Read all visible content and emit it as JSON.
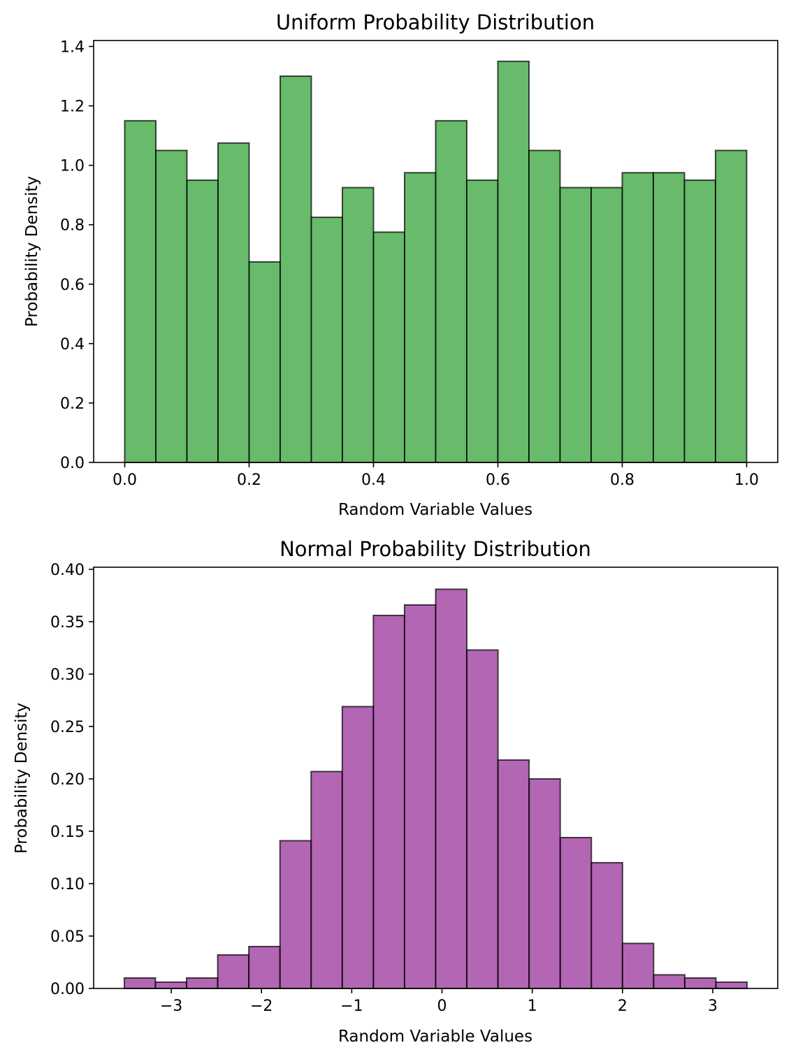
{
  "chart_data": [
    {
      "type": "bar",
      "subtype": "histogram",
      "title": "Uniform Probability Distribution",
      "xlabel": "Random Variable Values",
      "ylabel": "Probability Density",
      "bar_color": "#4caf50",
      "bar_alpha": 0.85,
      "edge_color": "#000000",
      "grid": false,
      "xlim": [
        -0.05,
        1.05
      ],
      "ylim": [
        0,
        1.42
      ],
      "xticks": [
        0.0,
        0.2,
        0.4,
        0.6,
        0.8,
        1.0
      ],
      "xtick_labels": [
        "0.0",
        "0.2",
        "0.4",
        "0.6",
        "0.8",
        "1.0"
      ],
      "yticks": [
        0.0,
        0.2,
        0.4,
        0.6,
        0.8,
        1.0,
        1.2,
        1.4
      ],
      "ytick_labels": [
        "0.0",
        "0.2",
        "0.4",
        "0.6",
        "0.8",
        "1.0",
        "1.2",
        "1.4"
      ],
      "bin_edges": [
        0.0,
        0.05,
        0.1,
        0.15,
        0.2,
        0.25,
        0.3,
        0.35,
        0.4,
        0.45,
        0.5,
        0.55,
        0.6,
        0.65,
        0.7,
        0.75,
        0.8,
        0.85,
        0.9,
        0.95,
        1.0
      ],
      "values": [
        1.15,
        1.05,
        0.95,
        1.075,
        0.675,
        1.3,
        0.825,
        0.925,
        0.775,
        0.975,
        1.15,
        0.95,
        1.35,
        1.05,
        0.925,
        0.925,
        0.975,
        0.975,
        0.95,
        1.05
      ]
    },
    {
      "type": "bar",
      "subtype": "histogram",
      "title": "Normal Probability Distribution",
      "xlabel": "Random Variable Values",
      "ylabel": "Probability Density",
      "bar_color": "#993399",
      "bar_alpha": 0.75,
      "edge_color": "#000000",
      "grid": false,
      "xlim": [
        -3.86,
        3.72
      ],
      "ylim": [
        0,
        0.402
      ],
      "xticks": [
        -3,
        -2,
        -1,
        0,
        1,
        2,
        3
      ],
      "xtick_labels": [
        "−3",
        "−2",
        "−1",
        "0",
        "1",
        "2",
        "3"
      ],
      "yticks": [
        0.0,
        0.05,
        0.1,
        0.15,
        0.2,
        0.25,
        0.3,
        0.35,
        0.4
      ],
      "ytick_labels": [
        "0.00",
        "0.05",
        "0.10",
        "0.15",
        "0.20",
        "0.25",
        "0.30",
        "0.35",
        "0.40"
      ],
      "bin_edges": [
        -3.52,
        -3.175,
        -2.83,
        -2.485,
        -2.14,
        -1.795,
        -1.45,
        -1.105,
        -0.76,
        -0.415,
        -0.07,
        0.275,
        0.62,
        0.965,
        1.31,
        1.655,
        2.0,
        2.345,
        2.69,
        3.035,
        3.38
      ],
      "values": [
        0.01,
        0.006,
        0.01,
        0.032,
        0.04,
        0.141,
        0.207,
        0.269,
        0.356,
        0.366,
        0.381,
        0.323,
        0.218,
        0.2,
        0.144,
        0.12,
        0.043,
        0.013,
        0.01,
        0.006
      ]
    }
  ]
}
